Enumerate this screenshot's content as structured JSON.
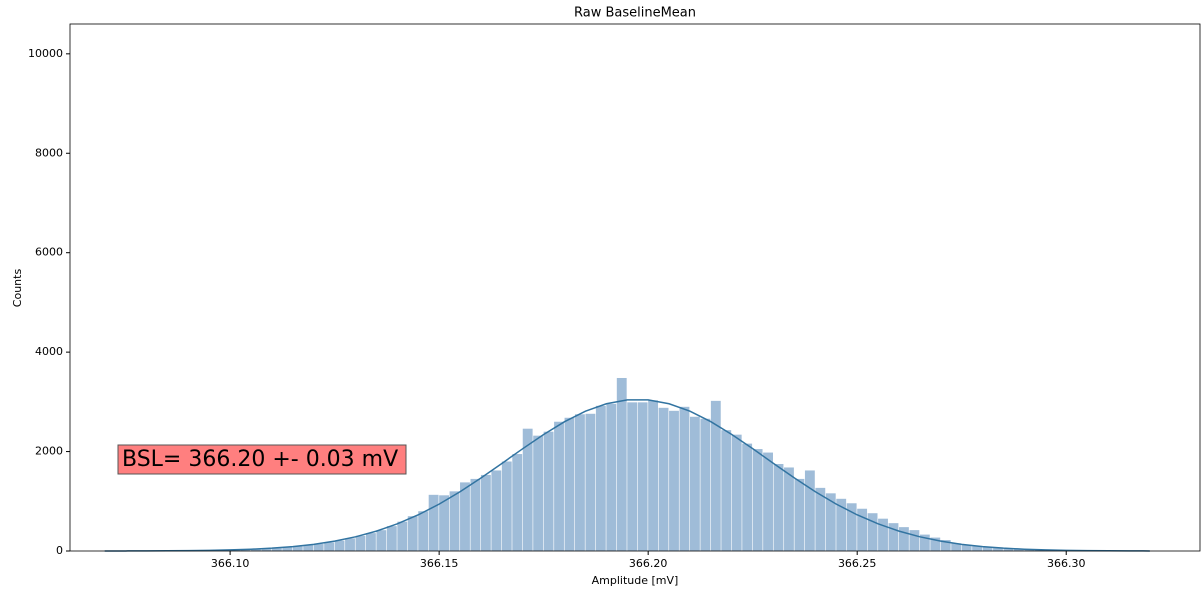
{
  "chart_data": {
    "type": "histogram",
    "title": "Raw BaselineMean",
    "x_label": "Amplitude [mV]",
    "y_label": "Counts",
    "annotation": "BSL= 366.20 +- 0.03 mV",
    "color": "#9fbcd8",
    "bins": [
      366.0725,
      366.075,
      366.0775,
      366.08,
      366.0825,
      366.085,
      366.0875,
      366.09,
      366.0925,
      366.095,
      366.0975,
      366.1,
      366.1025,
      366.105,
      366.1075,
      366.11,
      366.1125,
      366.115,
      366.1175,
      366.12,
      366.1225,
      366.125,
      366.1275,
      366.13,
      366.1325,
      366.135,
      366.1375,
      366.14,
      366.1425,
      366.145,
      366.1475,
      366.15,
      366.1525,
      366.155,
      366.1575,
      366.16,
      366.1625,
      366.165,
      366.1675,
      366.17,
      366.1725,
      366.175,
      366.1775,
      366.18,
      366.1825,
      366.185,
      366.1875,
      366.19,
      366.1925,
      366.195,
      366.1975,
      366.2,
      366.2025,
      366.205,
      366.2075,
      366.21,
      366.2125,
      366.215,
      366.2175,
      366.22,
      366.2225,
      366.225,
      366.2275,
      366.23,
      366.2325,
      366.235,
      366.2375,
      366.24,
      366.2425,
      366.245,
      366.2475,
      366.25,
      366.2525,
      366.255,
      366.2575,
      366.26,
      366.2625,
      366.265,
      366.2675,
      366.27,
      366.2725,
      366.275,
      366.2775,
      366.28,
      366.2825,
      366.285,
      366.2875,
      366.29,
      366.2925,
      366.295,
      366.2975,
      366.3,
      366.3025,
      366.305,
      366.3075,
      366.31,
      366.3125,
      366.315,
      366.3175,
      366.32,
      366.3225
    ],
    "values": [
      1,
      1,
      2,
      2,
      3,
      5,
      6,
      8,
      11,
      14,
      18,
      23,
      30,
      39,
      49,
      61,
      77,
      98,
      120,
      145,
      173,
      210,
      255,
      305,
      360,
      419,
      500,
      590,
      700,
      800,
      1130,
      1120,
      1200,
      1380,
      1450,
      1530,
      1620,
      1800,
      1950,
      2460,
      2320,
      2400,
      2600,
      2680,
      2750,
      2760,
      2920,
      2960,
      3480,
      2990,
      2990,
      3030,
      2880,
      2820,
      2900,
      2700,
      2660,
      3020,
      2430,
      2340,
      2160,
      2050,
      1980,
      1750,
      1680,
      1450,
      1620,
      1270,
      1160,
      1050,
      960,
      850,
      760,
      650,
      560,
      480,
      420,
      330,
      270,
      220,
      154,
      125,
      100,
      82,
      66,
      53,
      42,
      33,
      26,
      20,
      16,
      12,
      9,
      7,
      5,
      4,
      3,
      2,
      2,
      1
    ],
    "fit": {
      "color": "#3274a1",
      "x": [
        366.07,
        366.075,
        366.08,
        366.085,
        366.09,
        366.095,
        366.1,
        366.105,
        366.11,
        366.115,
        366.12,
        366.125,
        366.13,
        366.135,
        366.14,
        366.145,
        366.15,
        366.155,
        366.16,
        366.165,
        366.17,
        366.175,
        366.18,
        366.185,
        366.19,
        366.195,
        366.2,
        366.205,
        366.21,
        366.215,
        366.22,
        366.225,
        366.23,
        366.235,
        366.24,
        366.245,
        366.25,
        366.255,
        366.26,
        366.265,
        366.27,
        366.275,
        366.28,
        366.285,
        366.29,
        366.295,
        366.3,
        366.305,
        366.31,
        366.315,
        366.32
      ],
      "values": [
        0.6,
        1.2,
        2.3,
        4.2,
        7.5,
        12.9,
        21.7,
        35.6,
        56.8,
        88.4,
        134,
        198,
        285,
        400,
        546,
        727,
        943,
        1192,
        1468,
        1761,
        2058,
        2344,
        2601,
        2812,
        2962,
        3040,
        3040,
        2962,
        2812,
        2601,
        2344,
        2058,
        1761,
        1468,
        1192,
        943,
        727,
        546,
        400,
        285,
        198,
        134,
        88.4,
        56.8,
        35.6,
        21.7,
        12.9,
        7.5,
        4.2,
        2.3,
        1.2
      ]
    },
    "xlim": [
      366.0617,
      366.332
    ],
    "ylim": [
      0,
      10600
    ],
    "xticks": [
      {
        "value": 366.1,
        "label": "366.10"
      },
      {
        "value": 366.15,
        "label": "366.15"
      },
      {
        "value": 366.2,
        "label": "366.20"
      },
      {
        "value": 366.25,
        "label": "366.25"
      },
      {
        "value": 366.3,
        "label": "366.30"
      }
    ],
    "yticks": [
      0,
      2000,
      4000,
      6000,
      8000,
      10000
    ]
  }
}
